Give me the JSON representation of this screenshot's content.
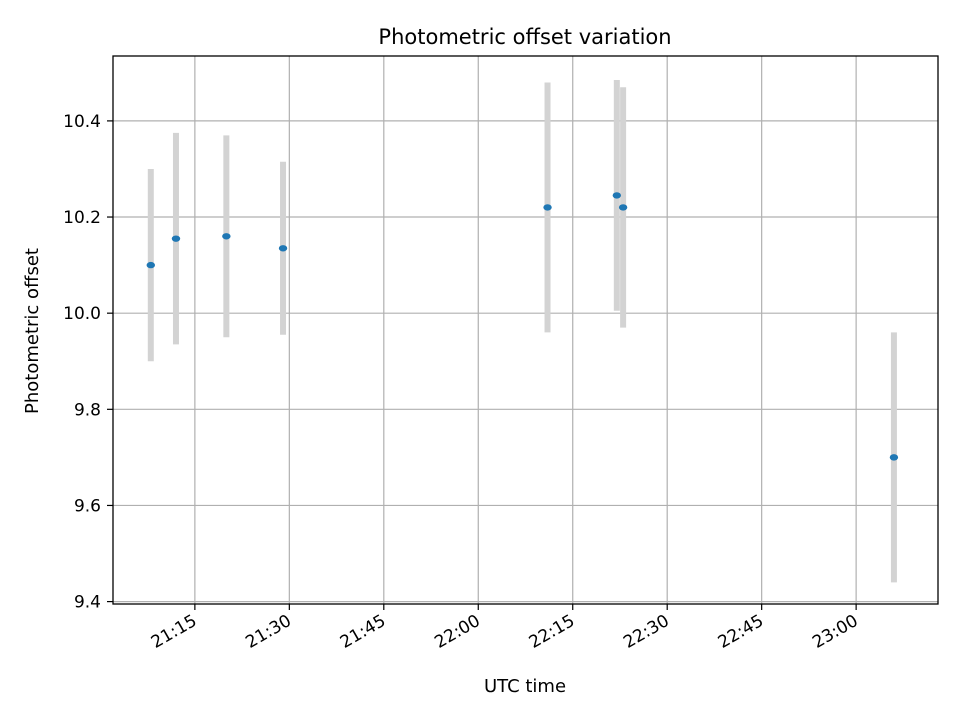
{
  "chart_data": {
    "type": "scatter",
    "title": "Photometric offset variation",
    "xlabel": "UTC time",
    "ylabel": "Photometric offset",
    "x_tick_labels": [
      "21:15",
      "21:30",
      "21:45",
      "22:00",
      "22:15",
      "22:30",
      "22:45",
      "23:00"
    ],
    "y_tick_labels": [
      "9.4",
      "9.6",
      "9.8",
      "10.0",
      "10.2",
      "10.4"
    ],
    "xlim": [
      "21:02",
      "23:13"
    ],
    "ylim": [
      9.395,
      10.535
    ],
    "grid": true,
    "point_color": "#1f77b4",
    "errorbar_color": "#d3d3d3",
    "series": [
      {
        "x": [
          "21:08",
          "21:12",
          "21:20",
          "21:29",
          "22:11",
          "22:22",
          "22:23",
          "23:06"
        ],
        "y": [
          10.1,
          10.155,
          10.16,
          10.135,
          10.22,
          10.245,
          10.22,
          9.7
        ],
        "yerr_low": [
          0.2,
          0.22,
          0.21,
          0.18,
          0.26,
          0.24,
          0.25,
          0.26
        ],
        "yerr_high": [
          0.2,
          0.22,
          0.21,
          0.18,
          0.26,
          0.24,
          0.25,
          0.26
        ]
      }
    ]
  }
}
